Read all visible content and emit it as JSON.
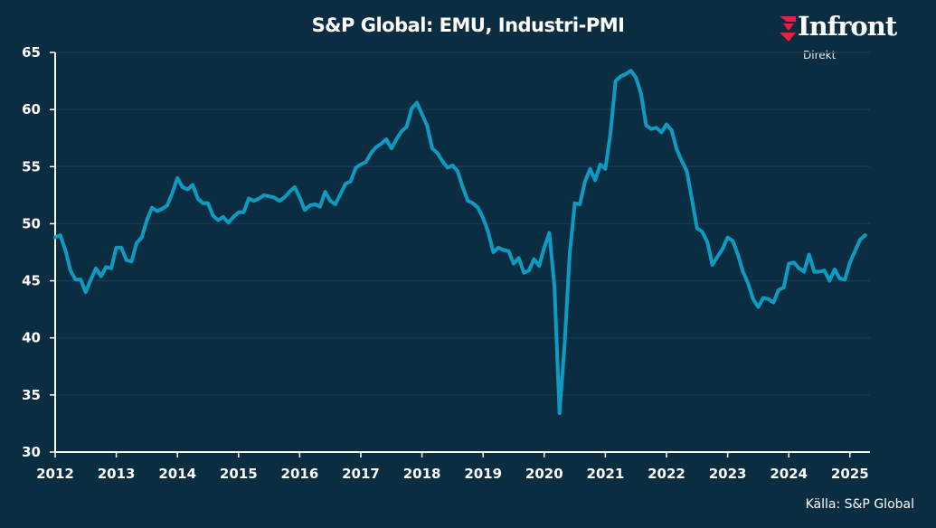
{
  "header": {
    "title": "S&P Global: EMU, Industri-PMI"
  },
  "logo": {
    "name": "Infront",
    "sub": "Direkt",
    "accent": "#e8203f"
  },
  "footer": {
    "source": "Källa:  S&P Global"
  },
  "colors": {
    "background": "#0b2d42",
    "line": "#0f9ac1",
    "grid": "#16394f",
    "axis": "#ffffff"
  },
  "chart_data": {
    "type": "line",
    "title": "S&P Global: EMU, Industri-PMI",
    "xlabel": "",
    "ylabel": "",
    "ylim": [
      30,
      65
    ],
    "xlim": [
      2012,
      2025.35
    ],
    "yticks": [
      30,
      35,
      40,
      45,
      50,
      55,
      60,
      65
    ],
    "xticks": [
      "2012",
      "2013",
      "2014",
      "2015",
      "2016",
      "2017",
      "2018",
      "2019",
      "2020",
      "2021",
      "2022",
      "2023",
      "2024",
      "2025"
    ],
    "grid": true,
    "legend": "none",
    "series": [
      {
        "name": "EMU Industri-PMI",
        "start": "2012-01",
        "frequency": "monthly",
        "values": [
          48.8,
          49.0,
          47.7,
          45.9,
          45.1,
          45.1,
          44.0,
          45.1,
          46.1,
          45.4,
          46.2,
          46.1,
          47.9,
          47.9,
          46.8,
          46.7,
          48.3,
          48.8,
          50.3,
          51.4,
          51.1,
          51.3,
          51.6,
          52.7,
          54.0,
          53.2,
          53.0,
          53.4,
          52.2,
          51.8,
          51.8,
          50.7,
          50.3,
          50.6,
          50.1,
          50.6,
          51.0,
          51.0,
          52.2,
          52.0,
          52.2,
          52.5,
          52.4,
          52.3,
          52.0,
          52.3,
          52.8,
          53.2,
          52.3,
          51.2,
          51.6,
          51.7,
          51.5,
          52.8,
          52.0,
          51.7,
          52.6,
          53.5,
          53.7,
          54.9,
          55.2,
          55.4,
          56.2,
          56.7,
          57.0,
          57.4,
          56.6,
          57.4,
          58.1,
          58.5,
          60.1,
          60.6,
          59.6,
          58.6,
          56.6,
          56.2,
          55.5,
          54.9,
          55.1,
          54.6,
          53.2,
          52.0,
          51.8,
          51.4,
          50.5,
          49.3,
          47.5,
          47.9,
          47.7,
          47.6,
          46.5,
          47.0,
          45.7,
          45.9,
          46.9,
          46.3,
          47.9,
          49.2,
          44.5,
          33.4,
          39.4,
          47.4,
          51.8,
          51.7,
          53.7,
          54.8,
          53.8,
          55.2,
          54.8,
          57.9,
          62.5,
          62.9,
          63.1,
          63.4,
          62.8,
          61.4,
          58.6,
          58.3,
          58.4,
          58.0,
          58.7,
          58.2,
          56.5,
          55.5,
          54.6,
          52.1,
          49.6,
          49.3,
          48.4,
          46.4,
          47.1,
          47.8,
          48.8,
          48.5,
          47.3,
          45.8,
          44.8,
          43.4,
          42.7,
          43.5,
          43.4,
          43.1,
          44.2,
          44.4,
          46.5,
          46.6,
          46.1,
          45.8,
          47.3,
          45.8,
          45.8,
          45.9,
          45.0,
          46.0,
          45.2,
          45.1,
          46.6,
          47.6,
          48.6,
          49.0
        ]
      }
    ]
  }
}
